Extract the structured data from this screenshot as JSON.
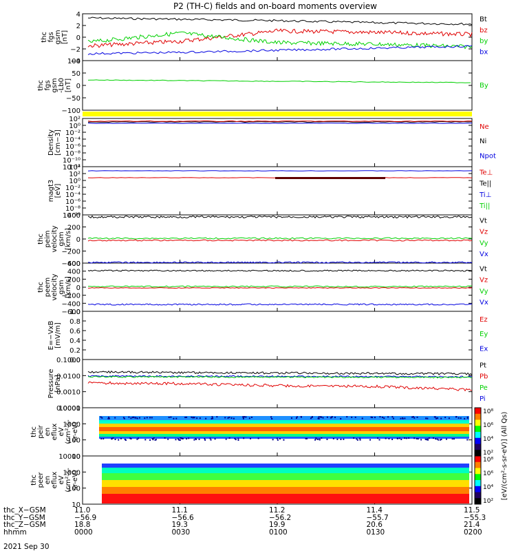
{
  "title": "P2 (TH-C) fields and on-board moments overview",
  "colors": {
    "black": "#000000",
    "red": "#e00000",
    "green": "#00d000",
    "blue": "#0000e0",
    "yellow": "#ffff00"
  },
  "panels": [
    {
      "id": "fgs",
      "ylabel": [
        "thc",
        "fgs",
        "gsm",
        "[nT]"
      ],
      "ticks": [
        "4",
        "2",
        "0",
        "−2",
        "−4"
      ],
      "legend": [
        {
          "t": "Bt",
          "c": "black"
        },
        {
          "t": "bz",
          "c": "red"
        },
        {
          "t": "by",
          "c": "green"
        },
        {
          "t": "bx",
          "c": "blue"
        }
      ]
    },
    {
      "id": "fgs_by",
      "ylabel": [
        "thc",
        "fgs",
        "gsm",
        "-Lb0",
        "[nT]"
      ],
      "ticks": [
        "100",
        "50",
        "0",
        "−50",
        "−100"
      ],
      "legend": [
        {
          "t": "By",
          "c": "green"
        }
      ]
    },
    {
      "id": "density",
      "ylabel": [
        "Density",
        "[cm−3]"
      ],
      "ticks": [
        "10²",
        "10⁰",
        "10⁻²",
        "10⁻⁴",
        "10⁻⁶",
        "10⁻⁸",
        "10⁻¹⁰",
        "10⁻¹²"
      ],
      "legend": [
        {
          "t": "Ne",
          "c": "red"
        },
        {
          "t": "Ni",
          "c": "black"
        },
        {
          "t": "Npot",
          "c": "blue"
        }
      ]
    },
    {
      "id": "temp",
      "ylabel": [
        "magt3",
        "[eV]"
      ],
      "ticks": [
        "10⁴",
        "10²",
        "10⁰",
        "10⁻²",
        "10⁻⁴",
        "10⁻⁶",
        "10⁻⁸",
        "10⁻¹⁰"
      ],
      "legend": [
        {
          "t": "Te⊥",
          "c": "red"
        },
        {
          "t": "Te||",
          "c": "black"
        },
        {
          "t": "Ti⊥",
          "c": "blue"
        },
        {
          "t": "Ti||",
          "c": "green"
        }
      ]
    },
    {
      "id": "ivel",
      "ylabel": [
        "thc",
        "peim",
        "velocity",
        "gsm",
        "[km/s]"
      ],
      "ticks": [
        "400",
        "200",
        "0",
        "−200",
        "−400"
      ],
      "legend": [
        {
          "t": "Vt",
          "c": "black"
        },
        {
          "t": "Vz",
          "c": "red"
        },
        {
          "t": "Vy",
          "c": "green"
        },
        {
          "t": "Vx",
          "c": "blue"
        }
      ]
    },
    {
      "id": "evel",
      "ylabel": [
        "thc",
        "peem",
        "velocity",
        "gsm",
        "[km/s]"
      ],
      "ticks": [
        "600",
        "400",
        "200",
        "0",
        "−200",
        "−400",
        "−600"
      ],
      "legend": [
        {
          "t": "Vt",
          "c": "black"
        },
        {
          "t": "Vz",
          "c": "red"
        },
        {
          "t": "Vy",
          "c": "green"
        },
        {
          "t": "Vx",
          "c": "blue"
        }
      ]
    },
    {
      "id": "efield",
      "ylabel": [
        "E=−VxB",
        "[mV/m]"
      ],
      "ticks": [
        "1.0",
        "0.8",
        "0.6",
        "0.4",
        "0.2",
        "0.0"
      ],
      "legend": [
        {
          "t": "Ez",
          "c": "red"
        },
        {
          "t": "Ey",
          "c": "green"
        },
        {
          "t": "Ex",
          "c": "blue"
        }
      ]
    },
    {
      "id": "pressure",
      "ylabel": [
        "Pressure",
        "[nPa]"
      ],
      "ticks": [
        "0.1000",
        "0.0100",
        "0.0010",
        "0.0001"
      ],
      "legend": [
        {
          "t": "Pt",
          "c": "black"
        },
        {
          "t": "Pb",
          "c": "red"
        },
        {
          "t": "Pe",
          "c": "green"
        },
        {
          "t": "Pi",
          "c": "blue"
        }
      ]
    },
    {
      "id": "ion_spec",
      "ylabel": [
        "thc",
        "peir",
        "en",
        "eflux",
        "eV",
        "(cm²-s-",
        "sr-eV)"
      ],
      "ticks": [
        "10000",
        "1000",
        "100",
        "10"
      ]
    },
    {
      "id": "ele_spec",
      "ylabel": [
        "thc",
        "peer",
        "en",
        "eflux",
        "eV",
        "(cm²-s-",
        "sr-eV)"
      ],
      "ticks": [
        "10000",
        "1000",
        "100",
        "10"
      ]
    }
  ],
  "colorbar": {
    "label": "[eV/(cm²-s-sr-eV)] (All Qs)",
    "ion_ticks": [
      "10⁸",
      "10⁶",
      "10⁴",
      "10²"
    ],
    "ele_ticks": [
      "10⁸",
      "10⁶",
      "10⁴",
      "10²"
    ]
  },
  "footer": {
    "row_labels": [
      "thc_X−GSM",
      "thc_Y−GSM",
      "thc_Z−GSM",
      "hhmm"
    ],
    "columns": [
      [
        "11.0",
        "−56.9",
        "18.8",
        "0000"
      ],
      [
        "11.1",
        "−56.6",
        "19.3",
        "0030"
      ],
      [
        "11.2",
        "−56.2",
        "19.9",
        "0100"
      ],
      [
        "11.4",
        "−55.7",
        "20.6",
        "0130"
      ],
      [
        "11.5",
        "−55.3",
        "21.4",
        "0200"
      ]
    ],
    "date": "2021 Sep 30"
  },
  "chart_data": {
    "type": "line",
    "title": "P2 (TH-C) fields and on-board moments overview",
    "x_axis": {
      "label": "hhmm",
      "ticks": [
        "0000",
        "0030",
        "0100",
        "0130",
        "0200"
      ]
    },
    "series": [
      {
        "name": "Bt",
        "panel": "fgs",
        "color": "black",
        "approx_values": [
          3.5,
          3.3,
          3.0,
          2.6,
          2.3
        ]
      },
      {
        "name": "bz",
        "panel": "fgs",
        "color": "red",
        "approx_values": [
          -1.2,
          -0.3,
          1.2,
          0.9,
          0.5
        ]
      },
      {
        "name": "by",
        "panel": "fgs",
        "color": "green",
        "approx_values": [
          -1.0,
          0.8,
          -0.8,
          -1.0,
          -1.6
        ]
      },
      {
        "name": "bx",
        "panel": "fgs",
        "color": "blue",
        "approx_values": [
          -3.0,
          -2.6,
          -2.2,
          -1.8,
          -1.4
        ]
      },
      {
        "name": "By",
        "panel": "fgs_by",
        "color": "green",
        "approx_values": [
          22,
          20,
          18,
          15,
          12
        ]
      },
      {
        "name": "Vt",
        "panel": "ivel",
        "color": "black",
        "approx_values": [
          400,
          400,
          400,
          400,
          400
        ]
      },
      {
        "name": "Vx",
        "panel": "ivel",
        "color": "blue",
        "approx_values": [
          -390,
          -390,
          -390,
          -390,
          -390
        ]
      },
      {
        "name": "Vt",
        "panel": "evel",
        "color": "black",
        "approx_values": [
          440,
          440,
          440,
          440,
          440
        ]
      },
      {
        "name": "Vx",
        "panel": "evel",
        "color": "blue",
        "approx_values": [
          -450,
          -450,
          -450,
          -450,
          -450
        ]
      },
      {
        "name": "Pt",
        "panel": "pressure",
        "color": "black",
        "approx_values": [
          0.018,
          0.017,
          0.016,
          0.016,
          0.015
        ]
      },
      {
        "name": "Pb",
        "panel": "pressure",
        "color": "red",
        "approx_values": [
          0.005,
          0.004,
          0.004,
          0.003,
          0.003
        ]
      }
    ]
  }
}
